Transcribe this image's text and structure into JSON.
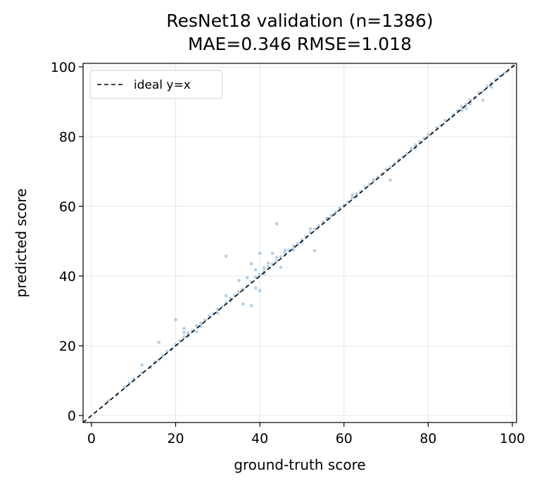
{
  "chart_data": {
    "type": "scatter",
    "title_line1": "ResNet18 validation (n=1386)",
    "title_line2": "MAE=0.346  RMSE=1.018",
    "xlabel": "ground-truth score",
    "ylabel": "predicted score",
    "xlim": [
      -2,
      101
    ],
    "ylim": [
      -2,
      101
    ],
    "xticks": [
      "0",
      "20",
      "40",
      "60",
      "80",
      "100"
    ],
    "yticks": [
      "0",
      "20",
      "40",
      "60",
      "80",
      "100"
    ],
    "grid": true,
    "legend": {
      "position": "top-left",
      "entries": [
        "ideal y=x"
      ]
    },
    "colors": {
      "points": "#5b9bd0",
      "ideal_line": "#000000",
      "grid": "#e6e6e6"
    },
    "ideal_line": {
      "label": "ideal y=x",
      "style": "dashed"
    },
    "series": [
      {
        "values_note_x": "ground truth",
        "x": [
          4,
          6,
          8,
          9,
          10,
          12,
          12,
          14,
          15,
          16,
          16,
          17,
          18,
          19,
          20,
          20,
          21,
          22,
          22,
          22,
          23,
          23,
          24,
          25,
          25,
          26,
          26,
          27,
          28,
          29,
          30,
          30,
          31,
          32,
          32,
          32,
          33,
          33,
          34,
          35,
          35,
          36,
          36,
          37,
          37,
          38,
          38,
          38,
          39,
          39,
          39,
          40,
          40,
          40,
          41,
          41,
          41,
          42,
          42,
          43,
          43,
          44,
          44,
          44,
          45,
          45,
          46,
          46,
          47,
          48,
          48,
          49,
          50,
          50,
          51,
          52,
          52,
          53,
          53,
          54,
          55,
          56,
          56,
          57,
          58,
          59,
          60,
          61,
          62,
          62,
          63,
          63,
          64,
          65,
          66,
          67,
          68,
          69,
          70,
          71,
          71,
          72,
          73,
          74,
          75,
          76,
          77,
          77,
          78,
          79,
          80,
          81,
          82,
          83,
          84,
          85,
          86,
          87,
          88,
          88,
          89,
          89,
          90,
          90,
          91,
          92,
          93,
          93,
          94,
          95,
          95,
          96,
          97,
          98,
          99,
          100
        ],
        "y": [
          4.2,
          6,
          8.2,
          9.3,
          10.5,
          14.5,
          12.3,
          13.8,
          15.3,
          16,
          21,
          17.2,
          18.4,
          19,
          27.5,
          20.3,
          21.4,
          25,
          23.8,
          22.5,
          22.8,
          23.7,
          24.4,
          24,
          25.8,
          26.4,
          25.5,
          27.4,
          28.6,
          29.2,
          30.4,
          29.4,
          31.2,
          45.7,
          34.4,
          32.2,
          33.5,
          32.8,
          34.4,
          35.4,
          38.7,
          32,
          36.2,
          37.3,
          39.5,
          43.5,
          31.5,
          38.3,
          39.7,
          36.6,
          41.8,
          46.5,
          35.8,
          40.4,
          41.3,
          42.3,
          40.6,
          42.6,
          43.7,
          43.4,
          46.5,
          55,
          44.3,
          45.3,
          42.5,
          45.5,
          46.6,
          47.4,
          47.4,
          48.6,
          47.6,
          49.3,
          50.4,
          49.6,
          51.4,
          52.5,
          53.6,
          47.3,
          53.5,
          54.4,
          55.5,
          56.2,
          56.6,
          57.4,
          58.3,
          59.5,
          60.3,
          61.2,
          62.5,
          63.2,
          63.6,
          62.8,
          64.3,
          65.5,
          66.3,
          67.6,
          68.2,
          69.4,
          70.6,
          71.2,
          67.5,
          72.3,
          73.4,
          74.1,
          75.2,
          76.5,
          77.6,
          76.7,
          78.5,
          79.4,
          80.5,
          81.2,
          82.5,
          83.2,
          84.6,
          85.1,
          86.3,
          87.4,
          88.6,
          87.5,
          89.3,
          88.1,
          90.5,
          89.4,
          91.2,
          92.5,
          93.1,
          90.4,
          94.5,
          95.3,
          94.2,
          96.4,
          97.3,
          98.2,
          99.1,
          100.2
        ]
      }
    ]
  }
}
